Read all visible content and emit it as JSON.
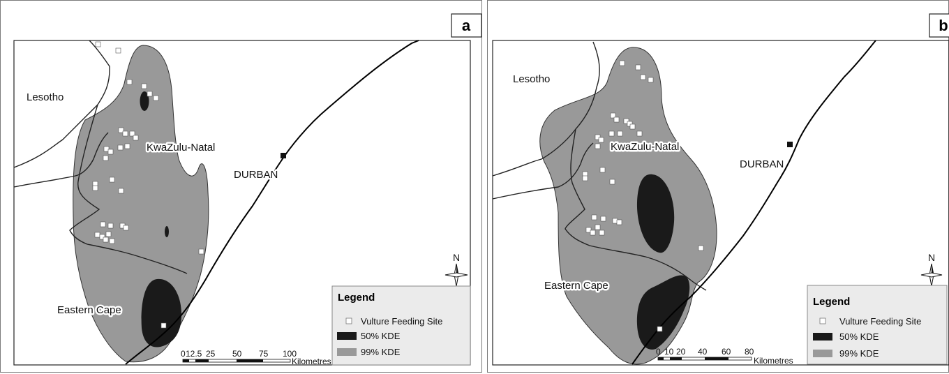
{
  "panels": [
    {
      "letter": "a",
      "labels": {
        "lesotho": "Lesotho",
        "kzn": "KwaZulu-Natal",
        "durban": "DURBAN",
        "eastern_cape": "Eastern Cape"
      },
      "north": "N",
      "legend": {
        "title": "Legend",
        "feeding_site": "Vulture Feeding Site",
        "kde50": "50% KDE",
        "kde99": "99% KDE"
      },
      "scale": {
        "ticks": [
          "0",
          "12.5",
          "25",
          "50",
          "75",
          "100"
        ],
        "unit": "Kilometres"
      }
    },
    {
      "letter": "b",
      "labels": {
        "lesotho": "Lesotho",
        "kzn": "KwaZulu-Natal",
        "durban": "DURBAN",
        "eastern_cape": "Eastern Cape"
      },
      "north": "N",
      "legend": {
        "title": "Legend",
        "feeding_site": "Vulture Feeding Site",
        "kde50": "50% KDE",
        "kde99": "99% KDE"
      },
      "scale": {
        "ticks": [
          "0",
          "10",
          "20",
          "40",
          "60",
          "80"
        ],
        "unit": "Kilometres"
      }
    }
  ],
  "colors": {
    "kde50": "#1a1a1a",
    "kde99": "#999999",
    "feeding_site": "#ffffff",
    "frame": "#7a7a7a"
  }
}
